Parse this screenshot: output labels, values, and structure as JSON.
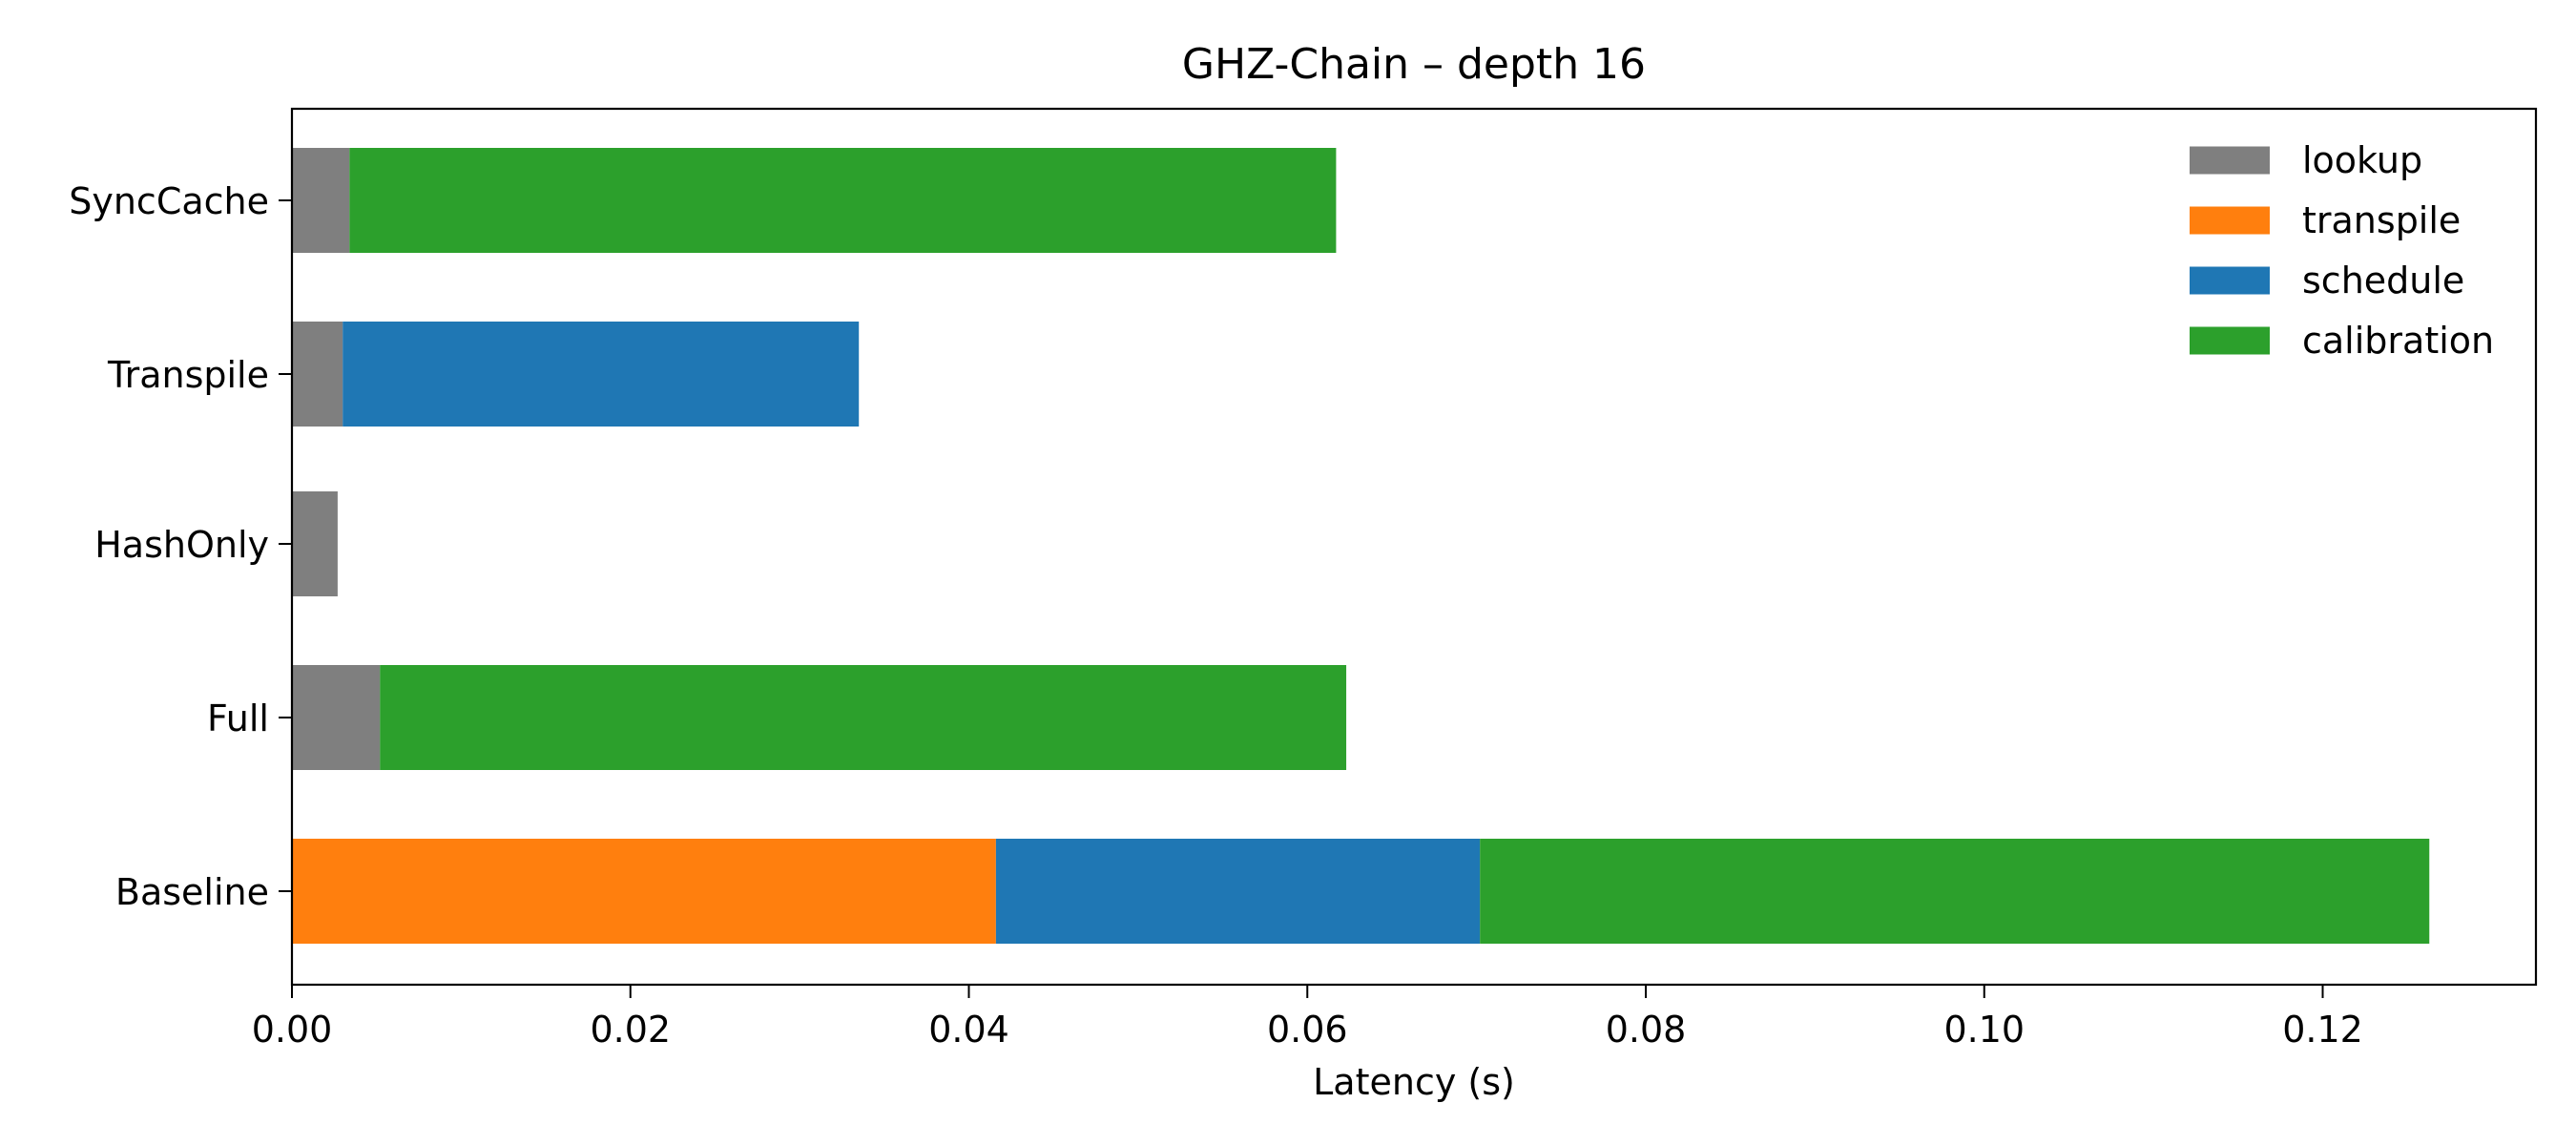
{
  "chart_data": {
    "type": "bar",
    "orientation": "horizontal",
    "stacked": true,
    "title": "GHZ-Chain – depth 16",
    "xlabel": "Latency (s)",
    "ylabel": "",
    "categories": [
      "Baseline",
      "Full",
      "HashOnly",
      "Transpile",
      "SyncCache"
    ],
    "series": [
      {
        "name": "lookup",
        "color": "#7f7f7f",
        "values": [
          0.0,
          0.0052,
          0.0027,
          0.003,
          0.0034
        ]
      },
      {
        "name": "transpile",
        "color": "#ff7f0e",
        "values": [
          0.0416,
          0.0,
          0.0,
          0.0,
          0.0
        ]
      },
      {
        "name": "schedule",
        "color": "#1f77b4",
        "values": [
          0.0286,
          0.0,
          0.0,
          0.0305,
          0.0
        ]
      },
      {
        "name": "calibration",
        "color": "#2ca02c",
        "values": [
          0.0561,
          0.0571,
          0.0,
          0.0,
          0.0583
        ]
      }
    ],
    "xticks": [
      "0.00",
      "0.02",
      "0.04",
      "0.06",
      "0.08",
      "0.10",
      "0.12"
    ],
    "xtick_values": [
      0,
      0.02,
      0.04,
      0.06,
      0.08,
      0.1,
      0.12
    ],
    "xlim": [
      0,
      0.1326
    ],
    "grid": false,
    "legend_position": "top-right"
  }
}
